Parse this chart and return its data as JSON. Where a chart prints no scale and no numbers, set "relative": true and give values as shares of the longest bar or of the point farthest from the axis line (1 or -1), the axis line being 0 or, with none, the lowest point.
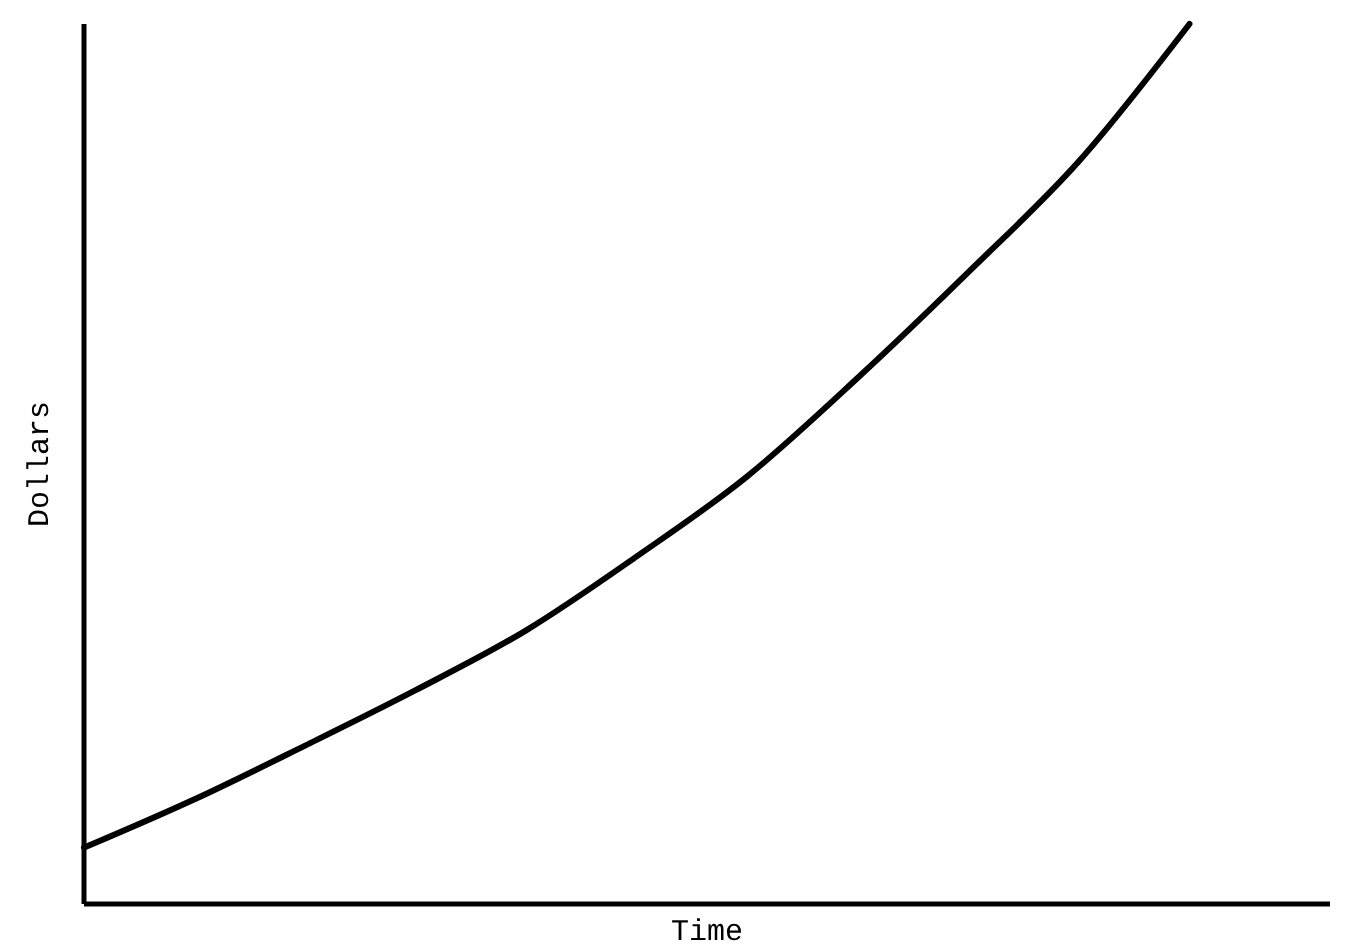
{
  "chart_data": {
    "type": "line",
    "xlabel": "Time",
    "ylabel": "Dollars",
    "relative": true,
    "categories": [
      null,
      null,
      null,
      null,
      null,
      null,
      null,
      null,
      null,
      null,
      null,
      null
    ],
    "series": [
      {
        "color": "#000000",
        "values": [
          0.064,
          0.119,
          0.18,
          0.243,
          0.311,
          0.395,
          0.486,
          0.598,
          0.718,
          0.844,
          1,
          null
        ]
      }
    ]
  }
}
